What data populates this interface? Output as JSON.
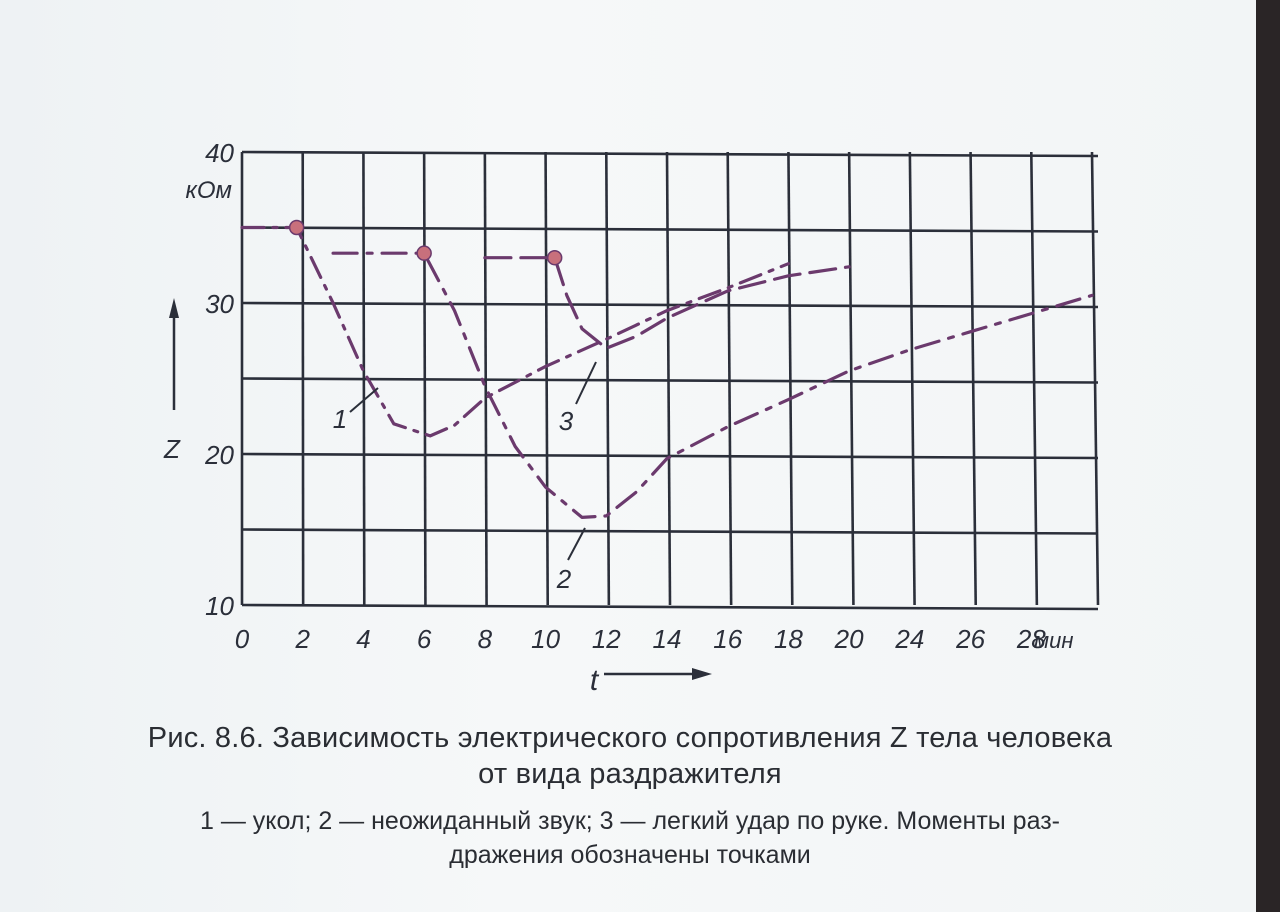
{
  "chart_data": {
    "type": "line",
    "ylabel_unit": "кОм",
    "ylabel_symbol": "Z",
    "xlabel_symbol": "t",
    "xlabel_unit": "мин",
    "x_ticks": [
      "0",
      "2",
      "4",
      "6",
      "8",
      "10",
      "12",
      "14",
      "16",
      "18",
      "20",
      "24",
      "26",
      "28"
    ],
    "y_ticks": [
      "10",
      "20",
      "30",
      "40"
    ],
    "ylim": [
      10,
      40
    ],
    "grid": true,
    "series": [
      {
        "name": "1",
        "stimulus_point": [
          1.8,
          35
        ],
        "points": [
          [
            0,
            35
          ],
          [
            1.8,
            35
          ],
          [
            3,
            30
          ],
          [
            4,
            25.5
          ],
          [
            5,
            22
          ],
          [
            6.2,
            21.2
          ],
          [
            7,
            21.9
          ],
          [
            8,
            23.7
          ],
          [
            10,
            25.8
          ],
          [
            12,
            27.6
          ],
          [
            14,
            29.5
          ],
          [
            16,
            31
          ],
          [
            18,
            32.6
          ]
        ]
      },
      {
        "name": "2",
        "stimulus_point": [
          6,
          33.3
        ],
        "points": [
          [
            3,
            33.3
          ],
          [
            6,
            33.3
          ],
          [
            7,
            29.5
          ],
          [
            8,
            24.5
          ],
          [
            9,
            20.5
          ],
          [
            10,
            17.8
          ],
          [
            11.2,
            15.8
          ],
          [
            12,
            15.9
          ],
          [
            13,
            17.5
          ],
          [
            14,
            19.7
          ],
          [
            16,
            21.8
          ],
          [
            18,
            23.6
          ],
          [
            20,
            25.5
          ],
          [
            22,
            26.9
          ],
          [
            24,
            28.1
          ],
          [
            26,
            29.3
          ],
          [
            28,
            30.5
          ]
        ]
      },
      {
        "name": "3",
        "stimulus_point": [
          10.3,
          33
        ],
        "points": [
          [
            8,
            33
          ],
          [
            10.3,
            33
          ],
          [
            10.7,
            30.5
          ],
          [
            11.2,
            28.3
          ],
          [
            12,
            27
          ],
          [
            13,
            27.8
          ],
          [
            14,
            29
          ],
          [
            16,
            30.8
          ],
          [
            18,
            31.8
          ],
          [
            20,
            32.4
          ]
        ]
      }
    ],
    "colors": {
      "grid": "#2b2f3a",
      "curve": "#6b3a6d",
      "dot": "#c8707c"
    }
  },
  "caption": {
    "title_line1": "Рис. 8.6. Зависимость электрического сопротивления Z тела человека",
    "title_line2": "от вида раздражителя",
    "legend_line1": "1 — укол; 2 — неожиданный звук; 3 — легкий удар по руке. Моменты раз-",
    "legend_line2": "дражения обозначены точками"
  }
}
